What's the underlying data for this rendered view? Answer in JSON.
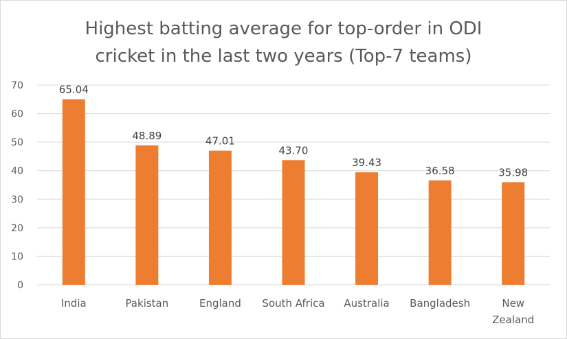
{
  "chart_data": {
    "type": "bar",
    "title_lines": [
      "Highest batting average for top-order in ODI",
      "cricket in the last two years (Top-7 teams)"
    ],
    "categories": [
      [
        "India"
      ],
      [
        "Pakistan"
      ],
      [
        "England"
      ],
      [
        "South Africa"
      ],
      [
        "Australia"
      ],
      [
        "Bangladesh"
      ],
      [
        "New",
        "Zealand"
      ]
    ],
    "values": [
      65.04,
      48.89,
      47.01,
      43.7,
      39.43,
      36.58,
      35.98
    ],
    "data_labels": [
      "65.04",
      "48.89",
      "47.01",
      "43.70",
      "39.43",
      "36.58",
      "35.98"
    ],
    "ylim": [
      0,
      70
    ],
    "yticks": [
      0,
      10,
      20,
      30,
      40,
      50,
      60,
      70
    ],
    "grid": true,
    "colors": {
      "bar": "#ED7D31",
      "grid": "#D9D9D9",
      "axis": "#D9D9D9"
    }
  }
}
